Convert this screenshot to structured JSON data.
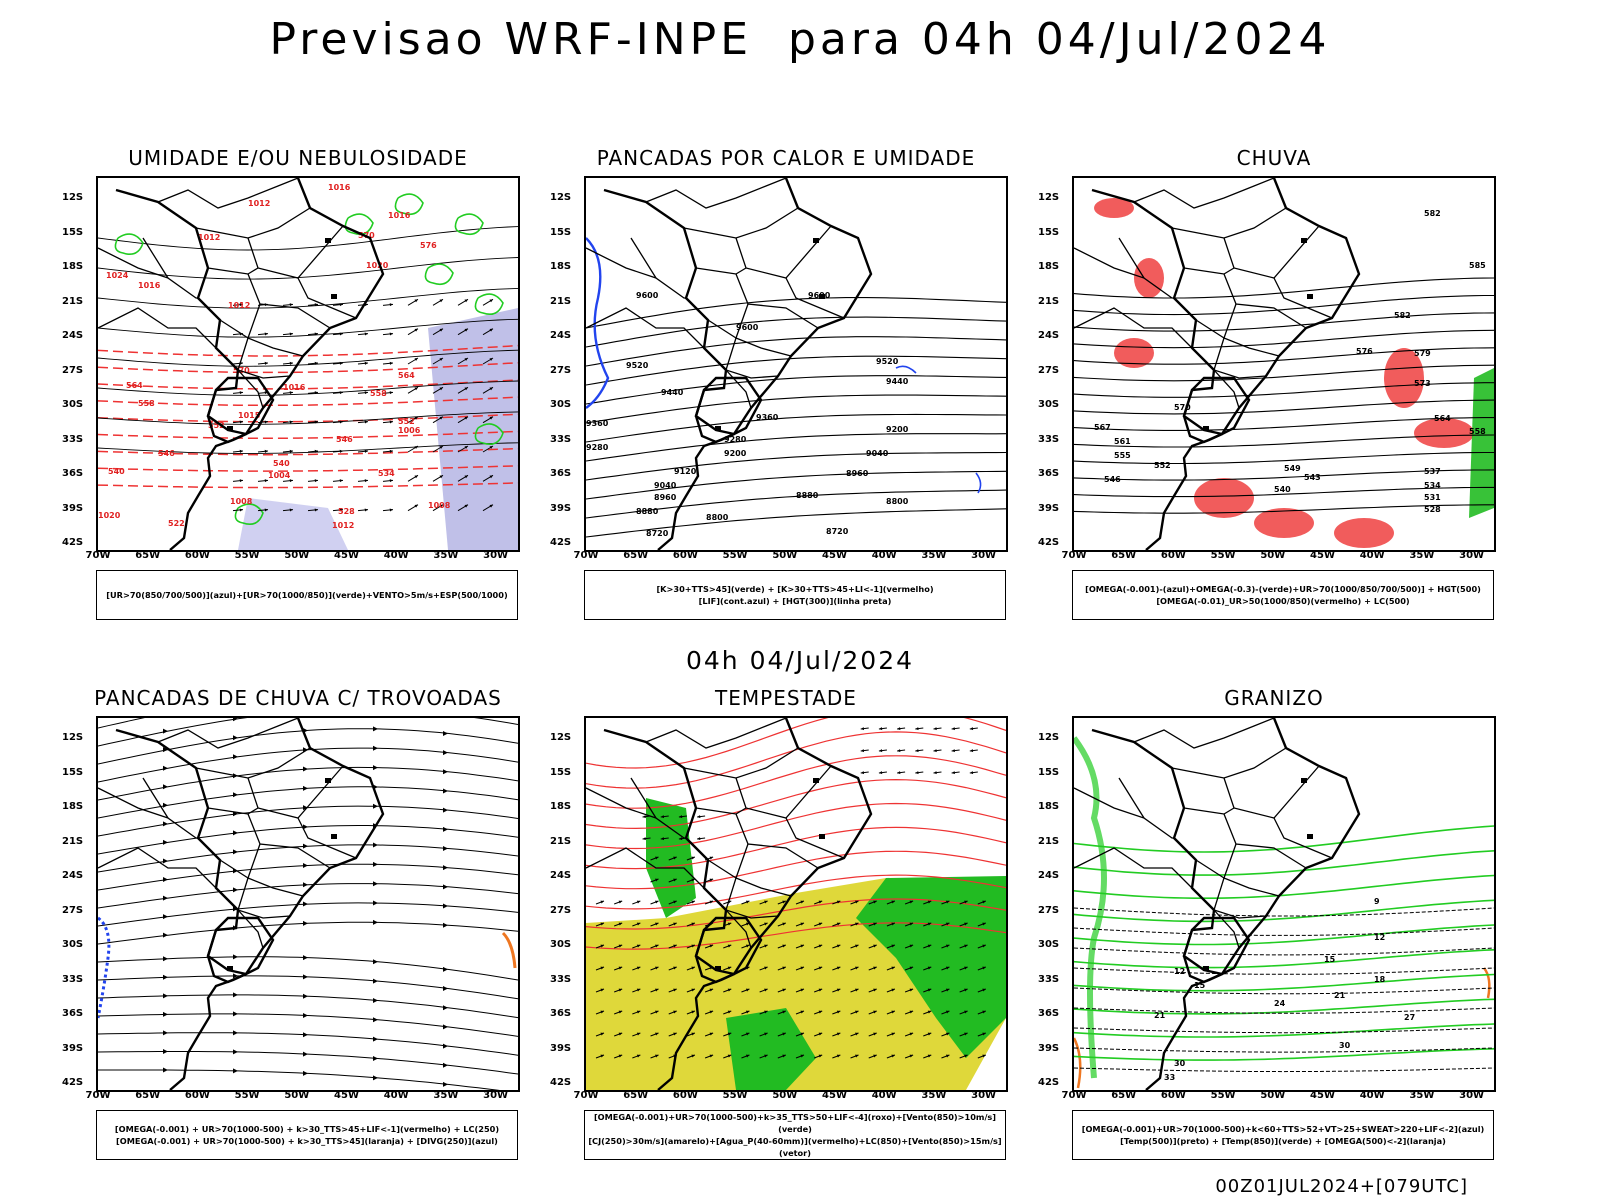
{
  "header": {
    "title": "Previsao WRF-INPE  para 04h 04/Jul/2024",
    "subtitle": "04h 04/Jul/2024",
    "footer": "00Z01JUL2024+[079UTC]"
  },
  "axes": {
    "lat_labels": [
      "12S",
      "15S",
      "18S",
      "21S",
      "24S",
      "27S",
      "30S",
      "33S",
      "36S",
      "39S",
      "42S"
    ],
    "lon_labels": [
      "70W",
      "65W",
      "60W",
      "55W",
      "50W",
      "45W",
      "40W",
      "35W",
      "30W"
    ]
  },
  "panels": [
    {
      "title": "UMIDADE E/OU NEBULOSIDADE",
      "legend": [
        "[UR>70(850/700/500)](azul)+[UR>70(1000/850)](verde)+VENTO>5m/s+ESP(500/1000)"
      ],
      "labels": [
        "1012",
        "1012",
        "1016",
        "1016",
        "1020",
        "1024",
        "1016",
        "1012",
        "1015",
        "1016",
        "1006",
        "1004",
        "1008",
        "1012",
        "1008",
        "570",
        "576",
        "570",
        "564",
        "558",
        "552",
        "546",
        "540",
        "534",
        "528",
        "522",
        "1020",
        "564",
        "558",
        "552",
        "546",
        "540"
      ]
    },
    {
      "title": "PANCADAS POR CALOR E UMIDADE",
      "legend": [
        "[K>30+TTS>45](verde) + [K>30+TTS>45+LI<-1](vermelho)",
        "[LIF](cont.azul) + [HGT(300)](linha preta)"
      ],
      "labels": [
        "9600",
        "9600",
        "9600",
        "9520",
        "9520",
        "9440",
        "9440",
        "9360",
        "9360",
        "9280",
        "9280",
        "9200",
        "9200",
        "9120",
        "9040",
        "9040",
        "8960",
        "8960",
        "8880",
        "8880",
        "8800",
        "8800",
        "8720",
        "8720"
      ]
    },
    {
      "title": "CHUVA",
      "legend": [
        "[OMEGA(-0.001)-(azul)+OMEGA(-0.3)-(verde)+UR>70(1000/850/700/500)] + HGT(500)",
        "[OMEGA(-0.01)_UR>50(1000/850)(vermelho) + LC(500)"
      ],
      "labels": [
        "582",
        "585",
        "582",
        "579",
        "576",
        "573",
        "570",
        "567",
        "564",
        "561",
        "558",
        "555",
        "552",
        "549",
        "546",
        "543",
        "540",
        "537",
        "534",
        "531",
        "528"
      ]
    },
    {
      "title": "PANCADAS DE CHUVA C/ TROVOADAS",
      "legend": [
        "[OMEGA(-0.001) + UR>70(1000-500) + k>30_TTS>45+LIF<-1](vermelho) + LC(250)",
        "[OMEGA(-0.001) + UR>70(1000-500) + k>30_TTS>45](laranja) + [DIVG(250)](azul)"
      ],
      "labels": []
    },
    {
      "title": "TEMPESTADE",
      "legend": [
        "[OMEGA(-0.001)+UR>70(1000-500)+k>35_TTS>50+LIF<-4](roxo)+[Vento(850)>10m/s](verde)",
        "[CJ(250)>30m/s](amarelo)+[Agua_P(40-60mm)](vermelho)+LC(850)+[Vento(850)>15m/s](vetor)"
      ],
      "labels": []
    },
    {
      "title": "GRANIZO",
      "legend": [
        "[OMEGA(-0.001)+UR>70(1000-500)+k<60+TTS>52+VT>25+SWEAT>220+LIF<-2](azul)",
        "[Temp(500)](preto) + [Temp(850)](verde) + [OMEGA(500)<-2](laranja)"
      ],
      "labels": [
        "9",
        "12",
        "12",
        "15",
        "15",
        "18",
        "21",
        "21",
        "24",
        "27",
        "30",
        "30",
        "33"
      ]
    }
  ]
}
